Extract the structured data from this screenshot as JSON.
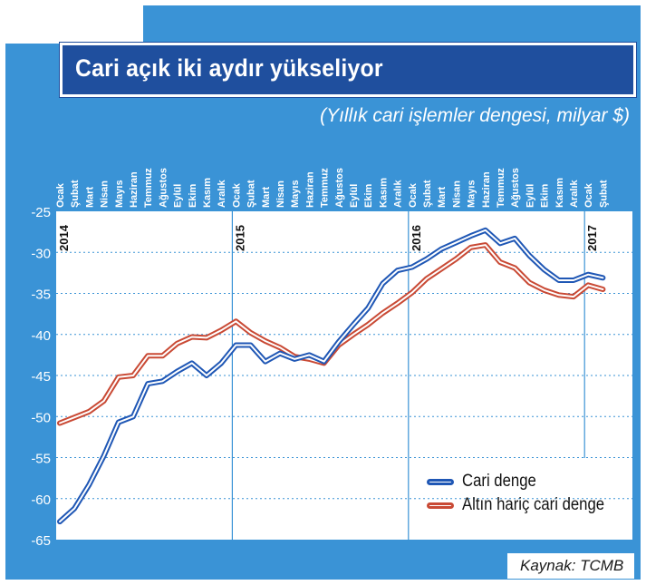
{
  "title": "Cari açık iki aydır yükseliyor",
  "subtitle": "(Yıllık cari işlemler dengesi, milyar $)",
  "source": "Kaynak: TCMB",
  "colors": {
    "background": "#3a93d6",
    "title_bg": "#1f4f9e",
    "plot_bg": "#ffffff",
    "cari_denge": "#1f57b5",
    "altin_haric": "#c94a35"
  },
  "chart_data": {
    "type": "line",
    "title": "Cari açık iki aydır yükseliyor",
    "subtitle": "(Yıllık cari işlemler dengesi, milyar $)",
    "xlabel": "",
    "ylabel": "",
    "ylim": [
      -65,
      -25
    ],
    "yticks": [
      -25,
      -30,
      -35,
      -40,
      -45,
      -50,
      -55,
      -60,
      -65
    ],
    "grid": true,
    "legend_position": "bottom-right",
    "year_labels": [
      {
        "label": "2014",
        "index": 0
      },
      {
        "label": "2015",
        "index": 12
      },
      {
        "label": "2016",
        "index": 24
      },
      {
        "label": "2017",
        "index": 36
      }
    ],
    "categories": [
      "Ocak",
      "Şubat",
      "Mart",
      "Nisan",
      "Mayıs",
      "Haziran",
      "Temmuz",
      "Ağustos",
      "Eylül",
      "Ekim",
      "Kasım",
      "Aralık",
      "Ocak",
      "Şubat",
      "Mart",
      "Nisan",
      "Mayıs",
      "Haziran",
      "Temmuz",
      "Ağustos",
      "Eylül",
      "Ekim",
      "Kasım",
      "Aralık",
      "Ocak",
      "Şubat",
      "Mart",
      "Nisan",
      "Mayıs",
      "Haziran",
      "Temmuz",
      "Ağustos",
      "Eylül",
      "Ekim",
      "Kasım",
      "Aralık",
      "Ocak",
      "Şubat"
    ],
    "series": [
      {
        "name": "Cari denge",
        "values": [
          -62.8,
          -61.2,
          -58.3,
          -54.8,
          -50.7,
          -50.0,
          -46.0,
          -45.7,
          -44.5,
          -43.5,
          -45.0,
          -43.5,
          -41.3,
          -41.3,
          -43.3,
          -42.3,
          -43.0,
          -42.5,
          -43.3,
          -40.9,
          -38.8,
          -36.8,
          -33.8,
          -32.2,
          -31.8,
          -30.8,
          -29.6,
          -28.8,
          -28.0,
          -27.3,
          -28.9,
          -28.3,
          -30.4,
          -32.1,
          -33.4,
          -33.4,
          -32.7,
          -33.1
        ]
      },
      {
        "name": "Altın hariç cari denge",
        "values": [
          -50.8,
          -50.1,
          -49.4,
          -48.1,
          -45.2,
          -45.0,
          -42.6,
          -42.6,
          -41.1,
          -40.3,
          -40.4,
          -39.5,
          -38.4,
          -39.8,
          -40.8,
          -41.6,
          -42.7,
          -43.0,
          -43.5,
          -41.3,
          -40.0,
          -38.8,
          -37.4,
          -36.2,
          -34.9,
          -33.2,
          -32.0,
          -30.8,
          -29.4,
          -29.1,
          -31.2,
          -31.9,
          -33.7,
          -34.6,
          -35.2,
          -35.4,
          -34.0,
          -34.5
        ]
      }
    ]
  }
}
